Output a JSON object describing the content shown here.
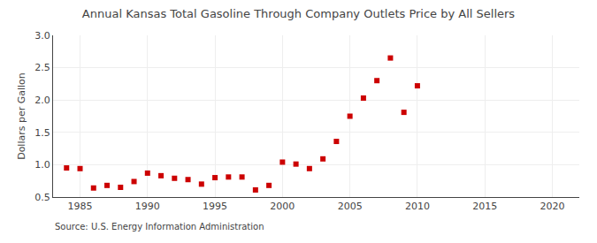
{
  "chart_data": {
    "type": "scatter",
    "title": "Annual Kansas Total Gasoline Through Company Outlets Price by All Sellers",
    "y_label": "Dollars per Gallon",
    "annotations": [
      "Source: U.S. Energy Information Administration"
    ],
    "x": [
      1984,
      1985,
      1986,
      1987,
      1988,
      1989,
      1990,
      1991,
      1992,
      1993,
      1994,
      1995,
      1996,
      1997,
      1998,
      1999,
      2000,
      2001,
      2002,
      2003,
      2004,
      2005,
      2006,
      2007,
      2008,
      2009,
      2010
    ],
    "values": [
      0.95,
      0.94,
      0.64,
      0.68,
      0.65,
      0.74,
      0.87,
      0.83,
      0.79,
      0.77,
      0.7,
      0.8,
      0.81,
      0.81,
      0.61,
      0.68,
      1.04,
      1.01,
      0.94,
      1.09,
      1.36,
      1.75,
      2.03,
      2.3,
      2.65,
      1.81,
      2.22
    ],
    "color": "#cc0000",
    "marker": "square",
    "xlim": [
      1983,
      2022
    ],
    "xticks": [
      1985,
      1990,
      1995,
      2000,
      2005,
      2010,
      2015,
      2020
    ],
    "ylim": [
      0.5,
      3.0
    ],
    "yticks": [
      0.5,
      {
        "value": 1.0,
        "label": "1.0"
      },
      1.5,
      {
        "value": 2.0,
        "label": "2.0"
      },
      2.5,
      {
        "value": 3.0,
        "label": "3.0"
      }
    ],
    "grid": true
  }
}
